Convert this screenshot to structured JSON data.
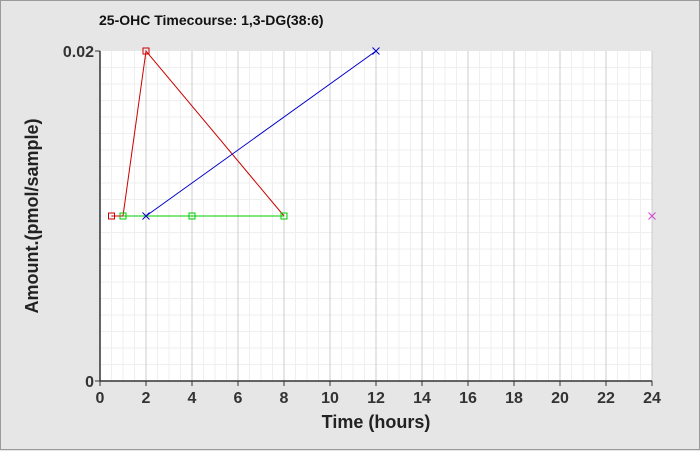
{
  "chart_data": {
    "type": "line",
    "title": "25-OHC Timecourse: 1,3-DG(38:6)",
    "xlabel": "Time (hours)",
    "ylabel": "Amount.(pmol/sample)",
    "xlim": [
      0,
      24
    ],
    "ylim": [
      0,
      0.02
    ],
    "x_ticks": [
      "0",
      "2",
      "4",
      "6",
      "8",
      "10",
      "12",
      "14",
      "16",
      "18",
      "20",
      "22",
      "24"
    ],
    "y_ticks": [
      "0",
      "0.02"
    ],
    "grid": true,
    "legend": "none",
    "series": [
      {
        "color": "#cc0000",
        "marker": "square",
        "points": [
          [
            0.5,
            0.01
          ],
          [
            1,
            0.01
          ],
          [
            2,
            0.02
          ],
          [
            8,
            0.01
          ]
        ]
      },
      {
        "color": "#00cc00",
        "marker": "square",
        "points": [
          [
            1,
            0.01
          ],
          [
            4,
            0.01
          ],
          [
            8,
            0.01
          ]
        ]
      },
      {
        "color": "#0000cc",
        "marker": "x",
        "points": [
          [
            2,
            0.01
          ],
          [
            12,
            0.02
          ]
        ]
      },
      {
        "color": "#cc44cc",
        "marker": "x",
        "points": [
          [
            24,
            0.01
          ]
        ]
      }
    ]
  }
}
